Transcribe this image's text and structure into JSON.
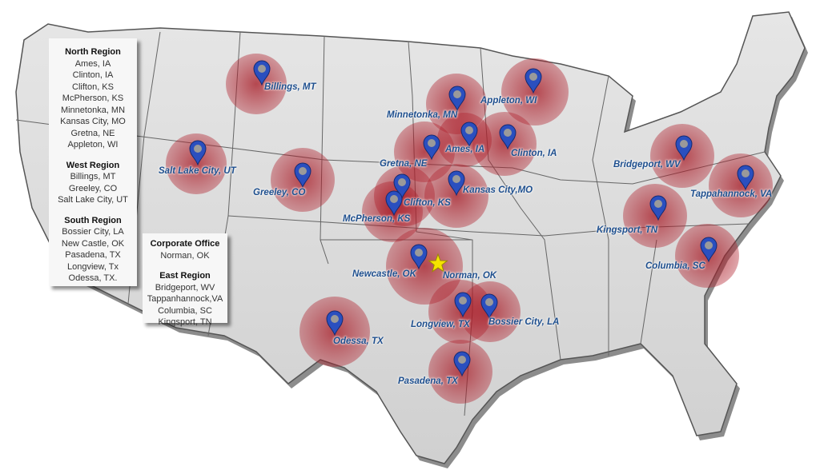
{
  "legend_left": {
    "sections": [
      {
        "heading": "North Region",
        "items": [
          "Ames, IA",
          "Clinton, IA",
          "Clifton, KS",
          "McPherson, KS",
          "Minnetonka, MN",
          "Kansas City, MO",
          "Gretna, NE",
          "Appleton, WI"
        ]
      },
      {
        "heading": "West Region",
        "items": [
          "Billings, MT",
          "Greeley, CO",
          "Salt Lake City, UT"
        ]
      },
      {
        "heading": "South Region",
        "items": [
          "Bossier City, LA",
          "New Castle, OK",
          "Pasadena, TX",
          "Longview, Tx",
          "Odessa, TX."
        ]
      }
    ]
  },
  "legend_right": {
    "sections": [
      {
        "heading": "Corporate Office",
        "items": [
          "Norman, OK"
        ]
      },
      {
        "heading": "East Region",
        "items": [
          "Bridgeport, WV",
          "Tappanhannock,VA",
          "Columbia, SC",
          "Kingsport, TN"
        ]
      }
    ]
  },
  "markers": [
    {
      "label": "Billings, MT",
      "icon": "map-pin-icon"
    },
    {
      "label": "Salt Lake City, UT",
      "icon": "map-pin-icon"
    },
    {
      "label": "Greeley, CO",
      "icon": "map-pin-icon"
    },
    {
      "label": "Minnetonka, MN",
      "icon": "map-pin-icon"
    },
    {
      "label": "Appleton, WI",
      "icon": "map-pin-icon"
    },
    {
      "label": "Ames, IA",
      "icon": "map-pin-icon"
    },
    {
      "label": "Clinton, IA",
      "icon": "map-pin-icon"
    },
    {
      "label": "Gretna, NE",
      "icon": "map-pin-icon"
    },
    {
      "label": "Kansas City,MO",
      "icon": "map-pin-icon"
    },
    {
      "label": "Clifton, KS",
      "icon": "map-pin-icon"
    },
    {
      "label": "McPherson, KS",
      "icon": "map-pin-icon"
    },
    {
      "label": "Newcastle, OK",
      "icon": "map-pin-icon"
    },
    {
      "label": "Norman, OK",
      "icon": "star-icon"
    },
    {
      "label": "Longview, TX",
      "icon": "map-pin-icon"
    },
    {
      "label": "Bossier City, LA",
      "icon": "map-pin-icon"
    },
    {
      "label": "Odessa, TX",
      "icon": "map-pin-icon"
    },
    {
      "label": "Pasadena, TX",
      "icon": "map-pin-icon"
    },
    {
      "label": "Bridgeport, WV",
      "icon": "map-pin-icon"
    },
    {
      "label": "Tappahannock, VA",
      "icon": "map-pin-icon"
    },
    {
      "label": "Kingsport, TN",
      "icon": "map-pin-icon"
    },
    {
      "label": "Columbia, SC",
      "icon": "map-pin-icon"
    }
  ],
  "colors": {
    "map_fill": "#d9d9d9",
    "radius_fill": "#b0202c",
    "pin": "#2a4fbf",
    "label": "#1e4f8e",
    "star": "#f5e400"
  }
}
